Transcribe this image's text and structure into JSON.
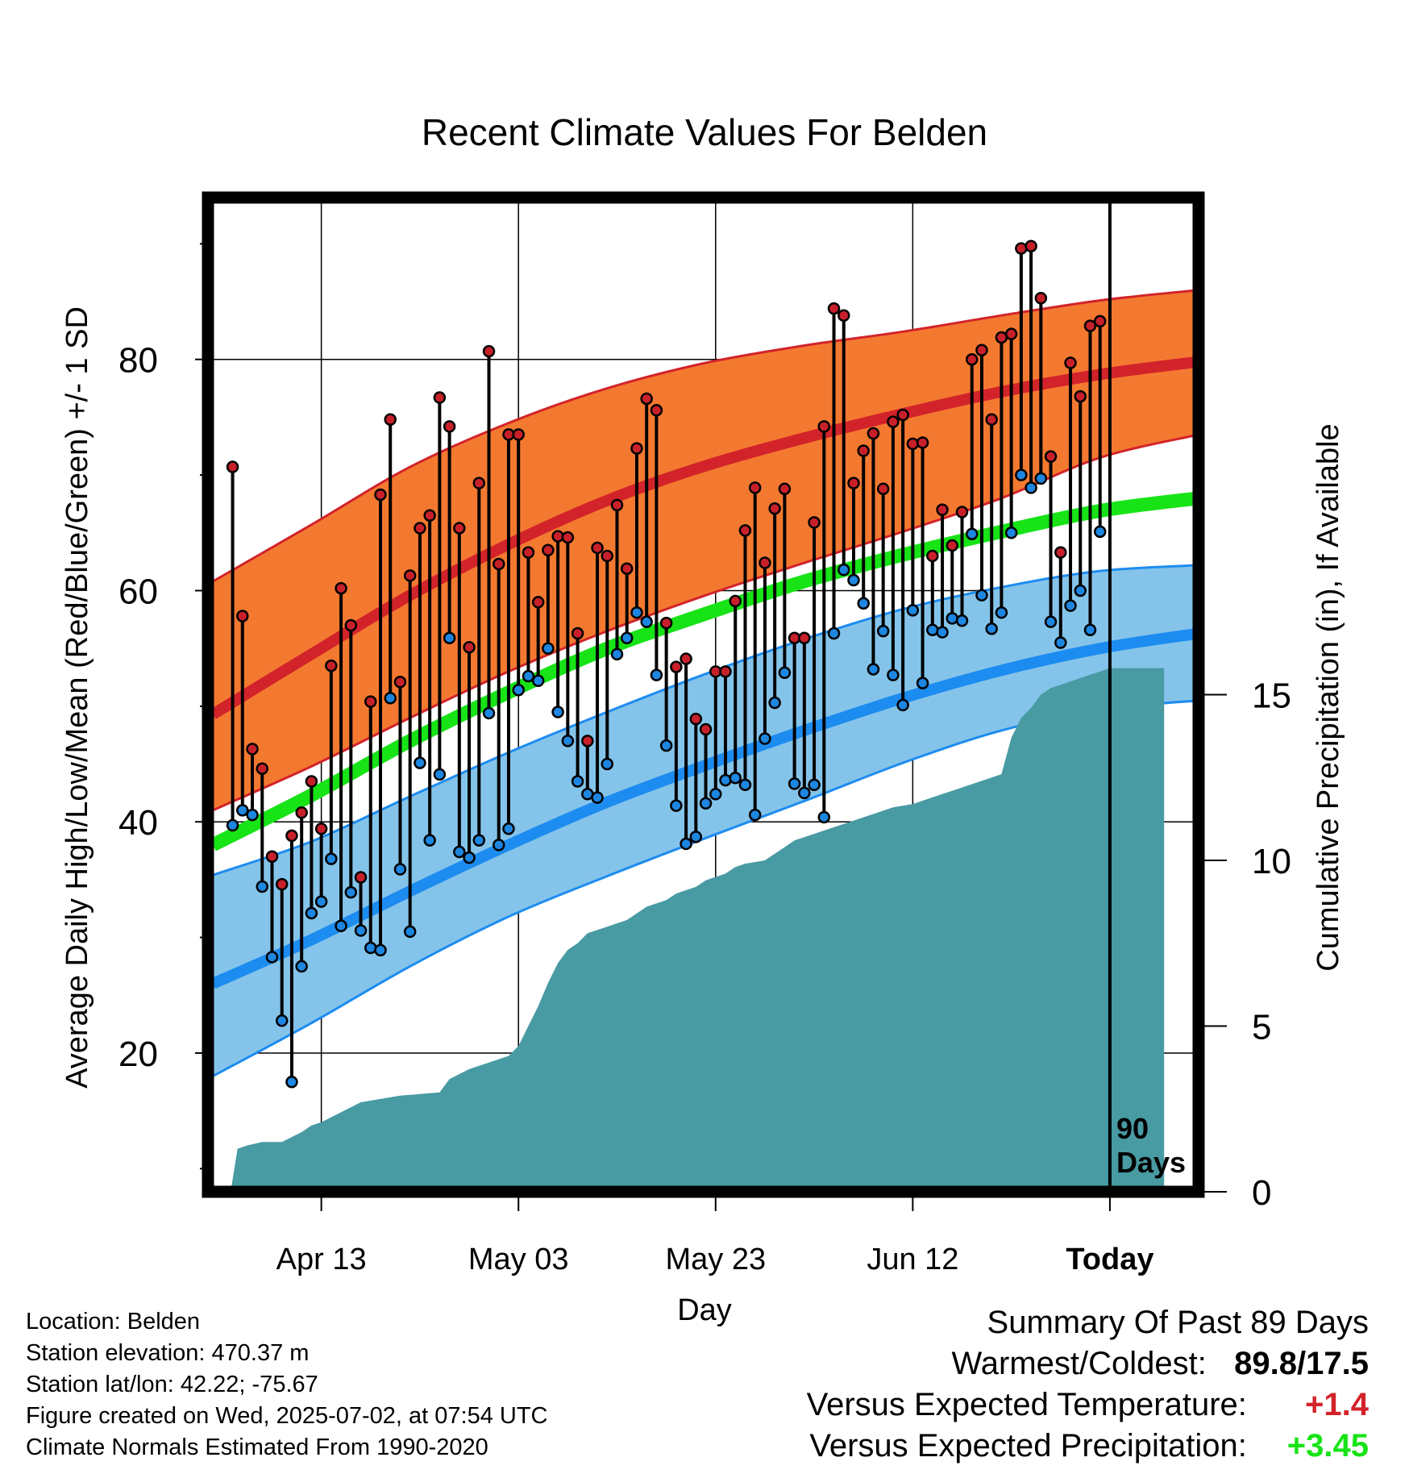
{
  "chart_data": {
    "type": "line",
    "title": "Recent Climate Values For Belden",
    "xlabel": "Day",
    "ylabel": "Average Daily High/Low/Mean (Red/Blue/Green) +/- 1 SD",
    "y2label": "Cumulative Precipitation (in), If Available",
    "ylim": [
      8,
      94
    ],
    "y2lim": [
      0,
      30
    ],
    "yticks": [
      "20",
      "40",
      "60",
      "80"
    ],
    "y2ticks": [
      "0",
      "5",
      "10",
      "15"
    ],
    "xticks": [
      "Apr 13",
      "May 03",
      "May 23",
      "Jun 12",
      "Today"
    ],
    "xtick_days": [
      10,
      30,
      50,
      70,
      90
    ],
    "x_days_range": [
      -1.5,
      99
    ],
    "vertical_marker_label": [
      "90",
      "Days"
    ],
    "normals": {
      "days": [
        -1,
        9,
        19,
        29,
        39,
        49,
        59,
        69,
        79,
        89,
        99
      ],
      "high_mean": [
        49.3,
        54.5,
        59.6,
        64.0,
        67.8,
        70.8,
        73.2,
        75.3,
        77.2,
        78.7,
        79.8
      ],
      "high_upper": [
        60.8,
        65.7,
        70.7,
        74.5,
        77.5,
        79.7,
        81.2,
        82.4,
        83.8,
        85.1,
        86.0
      ],
      "high_lower": [
        41.0,
        44.8,
        49.0,
        53.0,
        56.5,
        59.6,
        62.4,
        65.1,
        68.0,
        71.5,
        73.5
      ],
      "mean": [
        38.0,
        42.3,
        47.0,
        51.2,
        55.0,
        58.0,
        60.8,
        63.1,
        65.1,
        66.9,
        68.0
      ],
      "low_mean": [
        26.0,
        29.8,
        34.0,
        38.0,
        41.7,
        44.9,
        47.9,
        50.7,
        53.1,
        55.0,
        56.3
      ],
      "low_upper": [
        35.4,
        38.3,
        42.2,
        46.0,
        49.5,
        52.8,
        55.8,
        58.4,
        60.3,
        61.7,
        62.2
      ],
      "low_lower": [
        18.0,
        22.6,
        27.5,
        31.8,
        35.3,
        38.6,
        41.8,
        45.1,
        47.9,
        49.7,
        50.5
      ]
    },
    "observed": {
      "days": [
        1,
        2,
        3,
        4,
        5,
        6,
        7,
        8,
        9,
        10,
        11,
        12,
        13,
        14,
        15,
        16,
        17,
        18,
        19,
        20,
        21,
        22,
        23,
        24,
        25,
        26,
        27,
        28,
        29,
        30,
        31,
        32,
        33,
        34,
        35,
        36,
        37,
        38,
        39,
        40,
        41,
        42,
        43,
        44,
        45,
        46,
        47,
        48,
        49,
        50,
        51,
        52,
        53,
        54,
        55,
        56,
        57,
        58,
        59,
        60,
        61,
        62,
        63,
        64,
        65,
        66,
        67,
        68,
        69,
        70,
        71,
        72,
        73,
        74,
        75,
        76,
        77,
        78,
        79,
        80,
        81,
        82,
        83,
        84,
        85,
        86,
        87,
        88,
        89
      ],
      "high": [
        70.7,
        57.8,
        46.3,
        44.6,
        37.0,
        34.6,
        38.8,
        40.8,
        43.5,
        39.4,
        53.5,
        60.2,
        57.0,
        35.2,
        50.4,
        68.3,
        74.8,
        52.1,
        61.3,
        65.4,
        66.5,
        76.7,
        74.2,
        65.4,
        55.1,
        69.3,
        80.7,
        62.3,
        73.5,
        73.5,
        63.3,
        59.0,
        63.5,
        64.7,
        64.6,
        56.3,
        47.0,
        63.7,
        63.0,
        67.4,
        61.9,
        72.3,
        76.6,
        75.6,
        57.2,
        53.4,
        54.1,
        48.9,
        48.0,
        53.0,
        53.0,
        59.1,
        65.2,
        68.9,
        62.4,
        67.1,
        68.8,
        55.9,
        55.9,
        65.9,
        74.2,
        84.4,
        83.8,
        69.3,
        72.1,
        73.6,
        68.8,
        74.6,
        75.2,
        72.7,
        72.8,
        63.0,
        67.0,
        63.9,
        66.8,
        80.0,
        80.8,
        74.8,
        81.9,
        82.2,
        89.6,
        89.8,
        85.3,
        71.6,
        63.3,
        79.7,
        76.8,
        82.9,
        83.3
      ],
      "low": [
        39.7,
        41.0,
        40.6,
        34.4,
        28.3,
        22.8,
        17.5,
        27.5,
        32.1,
        33.1,
        36.8,
        31.0,
        33.9,
        30.6,
        29.1,
        28.9,
        50.7,
        35.9,
        30.5,
        45.1,
        38.4,
        44.1,
        55.9,
        37.4,
        36.9,
        38.4,
        49.4,
        38.0,
        39.4,
        51.4,
        52.6,
        52.2,
        55.0,
        49.5,
        47.0,
        43.5,
        42.4,
        42.1,
        45.0,
        54.5,
        55.9,
        58.1,
        57.3,
        52.7,
        46.6,
        41.4,
        38.1,
        38.7,
        41.6,
        42.4,
        43.6,
        43.8,
        43.2,
        40.6,
        47.2,
        50.3,
        52.9,
        43.3,
        42.5,
        43.2,
        40.4,
        56.3,
        61.8,
        60.9,
        58.9,
        53.2,
        56.5,
        52.7,
        50.1,
        58.3,
        52.0,
        56.6,
        56.4,
        57.6,
        57.4,
        64.9,
        59.6,
        56.7,
        58.1,
        65.0,
        70.0,
        68.9,
        69.7,
        57.3,
        55.5,
        58.7,
        60.0,
        56.6,
        65.1
      ]
    },
    "precip_cumulative": {
      "days": [
        0.8,
        1.5,
        2.5,
        4,
        5,
        6,
        8,
        9,
        10,
        12,
        14,
        16,
        18,
        20,
        22,
        23,
        25,
        27,
        29,
        30,
        31,
        32,
        33,
        34,
        35,
        36,
        37,
        39,
        41,
        42,
        43,
        44,
        45,
        46,
        48,
        49,
        50,
        51,
        52,
        53,
        55,
        56,
        57,
        58,
        60,
        62,
        64,
        66,
        68,
        70,
        71,
        72,
        73,
        74,
        75,
        76,
        77,
        78,
        79,
        80,
        81,
        82,
        83,
        84,
        85,
        86,
        87,
        88,
        89,
        90,
        95.5
      ],
      "values": [
        0,
        1.3,
        1.4,
        1.5,
        1.5,
        1.5,
        1.8,
        2.0,
        2.1,
        2.4,
        2.7,
        2.8,
        2.9,
        2.95,
        3.0,
        3.4,
        3.7,
        3.9,
        4.1,
        4.4,
        5.0,
        5.6,
        6.3,
        6.9,
        7.3,
        7.5,
        7.8,
        8.0,
        8.2,
        8.4,
        8.6,
        8.7,
        8.8,
        9.0,
        9.2,
        9.4,
        9.5,
        9.6,
        9.8,
        9.9,
        10.0,
        10.2,
        10.4,
        10.6,
        10.8,
        11.0,
        11.2,
        11.4,
        11.6,
        11.7,
        11.8,
        11.9,
        12.0,
        12.1,
        12.2,
        12.3,
        12.4,
        12.5,
        12.6,
        13.7,
        14.3,
        14.6,
        15.0,
        15.2,
        15.3,
        15.4,
        15.5,
        15.6,
        15.7,
        15.8,
        15.8
      ]
    },
    "colors": {
      "high_band": "#f47930",
      "high_line": "#d2232a",
      "low_band": "#85c4ea",
      "low_line": "#1d8cf0",
      "mean_line": "#17e317",
      "precip_fill": "#489aa3",
      "high_dot": "#c8202a",
      "low_dot": "#1d86e0"
    },
    "grid": true
  },
  "footer": {
    "location": "Location: Belden",
    "elevation": "Station elevation: 470.37 m",
    "latlon": "Station lat/lon: 42.22; -75.67",
    "created": "Figure created on Wed, 2025-07-02, at 07:54 UTC",
    "normals": "Climate Normals Estimated From 1990-2020"
  },
  "summary": {
    "heading": "Summary Of Past 89 Days",
    "warm_cold_label": "Warmest/Coldest:",
    "warm_cold_value": "89.8/17.5",
    "temp_label": "Versus Expected Temperature:",
    "temp_value": "+1.4",
    "temp_color": "#d2232a",
    "precip_label": "Versus Expected Precipitation:",
    "precip_value": "+3.45",
    "precip_color": "#17e317"
  }
}
